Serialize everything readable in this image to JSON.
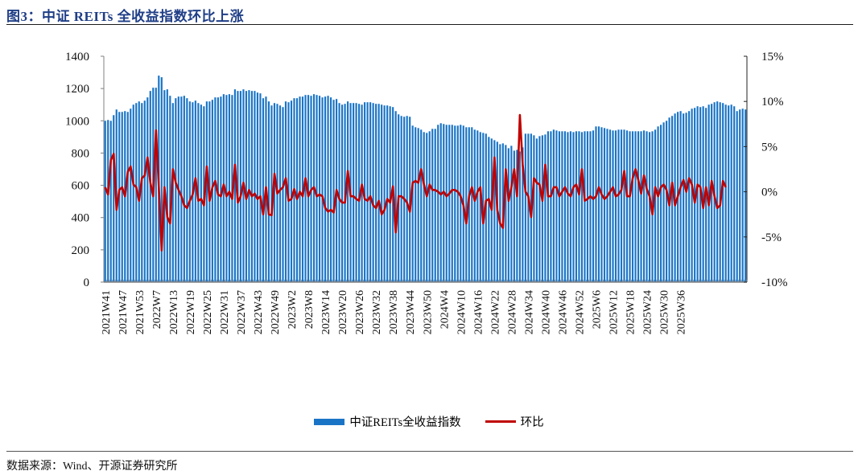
{
  "header": {
    "title": "图3：中证 REITs 全收益指数环比上涨"
  },
  "footer": {
    "source": "数据来源：Wind、开源证券研究所"
  },
  "legend": {
    "bar_label": "中证REITs全收益指数",
    "line_label": "环比"
  },
  "colors": {
    "bar": "#1a74c6",
    "line": "#c00000",
    "title": "#1f3e86"
  },
  "chart_data": {
    "type": "bar+line",
    "title": "图3：中证 REITs 全收益指数环比上涨",
    "xlabel": "",
    "ylabel_left": "",
    "ylabel_right": "",
    "ylim_left": [
      0,
      1400
    ],
    "yticks_left": [
      "0",
      "200",
      "400",
      "600",
      "800",
      "1000",
      "1200",
      "1400"
    ],
    "ylim_right": [
      -10,
      15
    ],
    "yticks_right": [
      "-10%",
      "-5%",
      "0%",
      "5%",
      "10%",
      "15%"
    ],
    "grid": false,
    "legend_position": "bottom",
    "x_tick_labels": [
      "2021W41",
      "2021W47",
      "2021W53",
      "2022W7",
      "2022W13",
      "2022W19",
      "2022W25",
      "2022W31",
      "2022W37",
      "2022W43",
      "2022W49",
      "2023W2",
      "2023W8",
      "2023W14",
      "2023W20",
      "2023W26",
      "2023W32",
      "2023W38",
      "2023W44",
      "2023W50",
      "2024W4",
      "2024W10",
      "2024W16",
      "2024W22",
      "2024W28",
      "2024W34",
      "2024W40",
      "2024W46",
      "2024W52",
      "2025W6",
      "2025W12",
      "2025W18",
      "2025W24",
      "2025W30",
      "2025W36"
    ],
    "series": [
      {
        "name": "中证REITs全收益指数",
        "type": "bar",
        "axis": "left",
        "values": [
          1000,
          1005,
          1000,
          1035,
          1070,
          1055,
          1055,
          1060,
          1055,
          1075,
          1100,
          1110,
          1120,
          1110,
          1125,
          1145,
          1185,
          1205,
          1205,
          1280,
          1270,
          1190,
          1195,
          1155,
          1110,
          1140,
          1150,
          1150,
          1155,
          1140,
          1120,
          1115,
          1125,
          1110,
          1100,
          1090,
          1120,
          1120,
          1130,
          1145,
          1145,
          1150,
          1165,
          1160,
          1165,
          1160,
          1195,
          1185,
          1185,
          1195,
          1185,
          1190,
          1185,
          1185,
          1175,
          1170,
          1140,
          1150,
          1120,
          1095,
          1110,
          1105,
          1095,
          1085,
          1120,
          1115,
          1125,
          1140,
          1140,
          1150,
          1150,
          1160,
          1160,
          1155,
          1165,
          1160,
          1155,
          1145,
          1150,
          1155,
          1145,
          1130,
          1135,
          1110,
          1100,
          1105,
          1120,
          1110,
          1110,
          1110,
          1105,
          1100,
          1115,
          1115,
          1115,
          1110,
          1105,
          1105,
          1100,
          1095,
          1095,
          1090,
          1085,
          1060,
          1040,
          1030,
          1025,
          1030,
          1025,
          970,
          960,
          955,
          945,
          930,
          925,
          935,
          950,
          950,
          975,
          985,
          980,
          975,
          975,
          975,
          970,
          970,
          975,
          970,
          960,
          960,
          960,
          945,
          940,
          930,
          925,
          920,
          900,
          890,
          880,
          870,
          855,
          860,
          850,
          830,
          845,
          815,
          820,
          810,
          835,
          920,
          920,
          920,
          910,
          890,
          905,
          910,
          915,
          935,
          935,
          945,
          940,
          935,
          935,
          935,
          930,
          935,
          930,
          935,
          935,
          930,
          935,
          935,
          935,
          940,
          965,
          965,
          960,
          955,
          950,
          945,
          940,
          940,
          945,
          945,
          945,
          940,
          935,
          935,
          935,
          935,
          935,
          940,
          935,
          930,
          935,
          945,
          965,
          975,
          990,
          1000,
          1020,
          1030,
          1045,
          1055,
          1060,
          1045,
          1050,
          1060,
          1075,
          1080,
          1090,
          1085,
          1090,
          1080,
          1100,
          1105,
          1115,
          1120,
          1115,
          1110,
          1100,
          1095,
          1100,
          1090,
          1060,
          1070,
          1075,
          1070
        ]
      },
      {
        "name": "环比",
        "type": "line",
        "axis": "right",
        "values": [
          0.5,
          -0.3,
          3.5,
          4.2,
          -2.0,
          0.2,
          0.5,
          -0.5,
          2.2,
          2.8,
          0.8,
          0.5,
          -1.0,
          1.5,
          1.8,
          3.8,
          1.0,
          -0.5,
          6.8,
          0.5,
          -6.5,
          0.5,
          -2.8,
          -3.5,
          2.5,
          1.0,
          0.2,
          -0.5,
          -1.5,
          -1.8,
          -1.0,
          -0.3,
          1.5,
          -1.0,
          -0.8,
          -1.5,
          2.8,
          -1.0,
          0.5,
          1.2,
          -0.3,
          -0.5,
          0.8,
          -0.5,
          0.0,
          -0.8,
          3.0,
          -1.2,
          -0.5,
          1.0,
          -0.8,
          0.2,
          -0.5,
          -0.2,
          -0.8,
          -0.5,
          -2.5,
          0.5,
          -2.5,
          -2.6,
          2.0,
          -0.2,
          0.2,
          0.5,
          1.5,
          -1.0,
          -0.8,
          0.3,
          -0.8,
          0.0,
          -0.5,
          1.5,
          -0.5,
          0.2,
          0.5,
          -0.5,
          -0.3,
          -0.5,
          -1.8,
          -2.2,
          -2.0,
          -2.3,
          0.2,
          -0.8,
          -1.2,
          -1.2,
          2.3,
          -0.5,
          -0.5,
          -0.8,
          -1.0,
          0.8,
          -0.8,
          -1.0,
          -0.5,
          -1.5,
          -1.8,
          -1.0,
          -2.5,
          -2.0,
          -0.8,
          -1.2,
          0.6,
          -4.5,
          -0.5,
          -0.5,
          -0.8,
          -1.2,
          -2.2,
          1.0,
          1.2,
          1.0,
          2.5,
          0.8,
          -0.5,
          0.8,
          0.2,
          0.2,
          0.0,
          -0.3,
          0.0,
          -0.5,
          -0.2,
          0.2,
          0.2,
          0.0,
          -0.5,
          -1.5,
          -3.5,
          -0.5,
          0.5,
          -1.0,
          0.0,
          0.5,
          -3.5,
          -1.0,
          -0.8,
          -2.0,
          3.8,
          -2.0,
          -3.5,
          -4.0,
          2.5,
          -1.0,
          0.5,
          2.5,
          -0.5,
          8.5,
          3.0,
          0.0,
          -0.5,
          -2.8,
          1.5,
          1.0,
          0.8,
          -1.0,
          3.0,
          -0.5,
          -0.5,
          0.5,
          0.5,
          -0.5,
          0.0,
          0.5,
          -0.2,
          -0.5,
          0.5,
          0.8,
          -0.3,
          2.5,
          -1.0,
          -0.8,
          -0.5,
          -0.8,
          -0.5,
          0.5,
          -0.3,
          -0.8,
          -0.5,
          0.0,
          0.5,
          -0.5,
          -0.3,
          0.2,
          2.3,
          -0.5,
          -0.5,
          1.5,
          2.5,
          1.3,
          -0.2,
          1.8,
          0.3,
          -0.5,
          -2.5,
          0.5,
          -0.5,
          0.5,
          0.8,
          0.2,
          -1.5,
          1.0,
          -1.5,
          -0.5,
          0.5,
          1.3,
          0.0,
          1.5,
          0.8,
          -1.2,
          0.8,
          0.5,
          -1.8,
          0.5,
          -1.5,
          1.2,
          -0.5,
          -1.8,
          -1.5,
          1.2,
          0.5
        ]
      }
    ]
  }
}
